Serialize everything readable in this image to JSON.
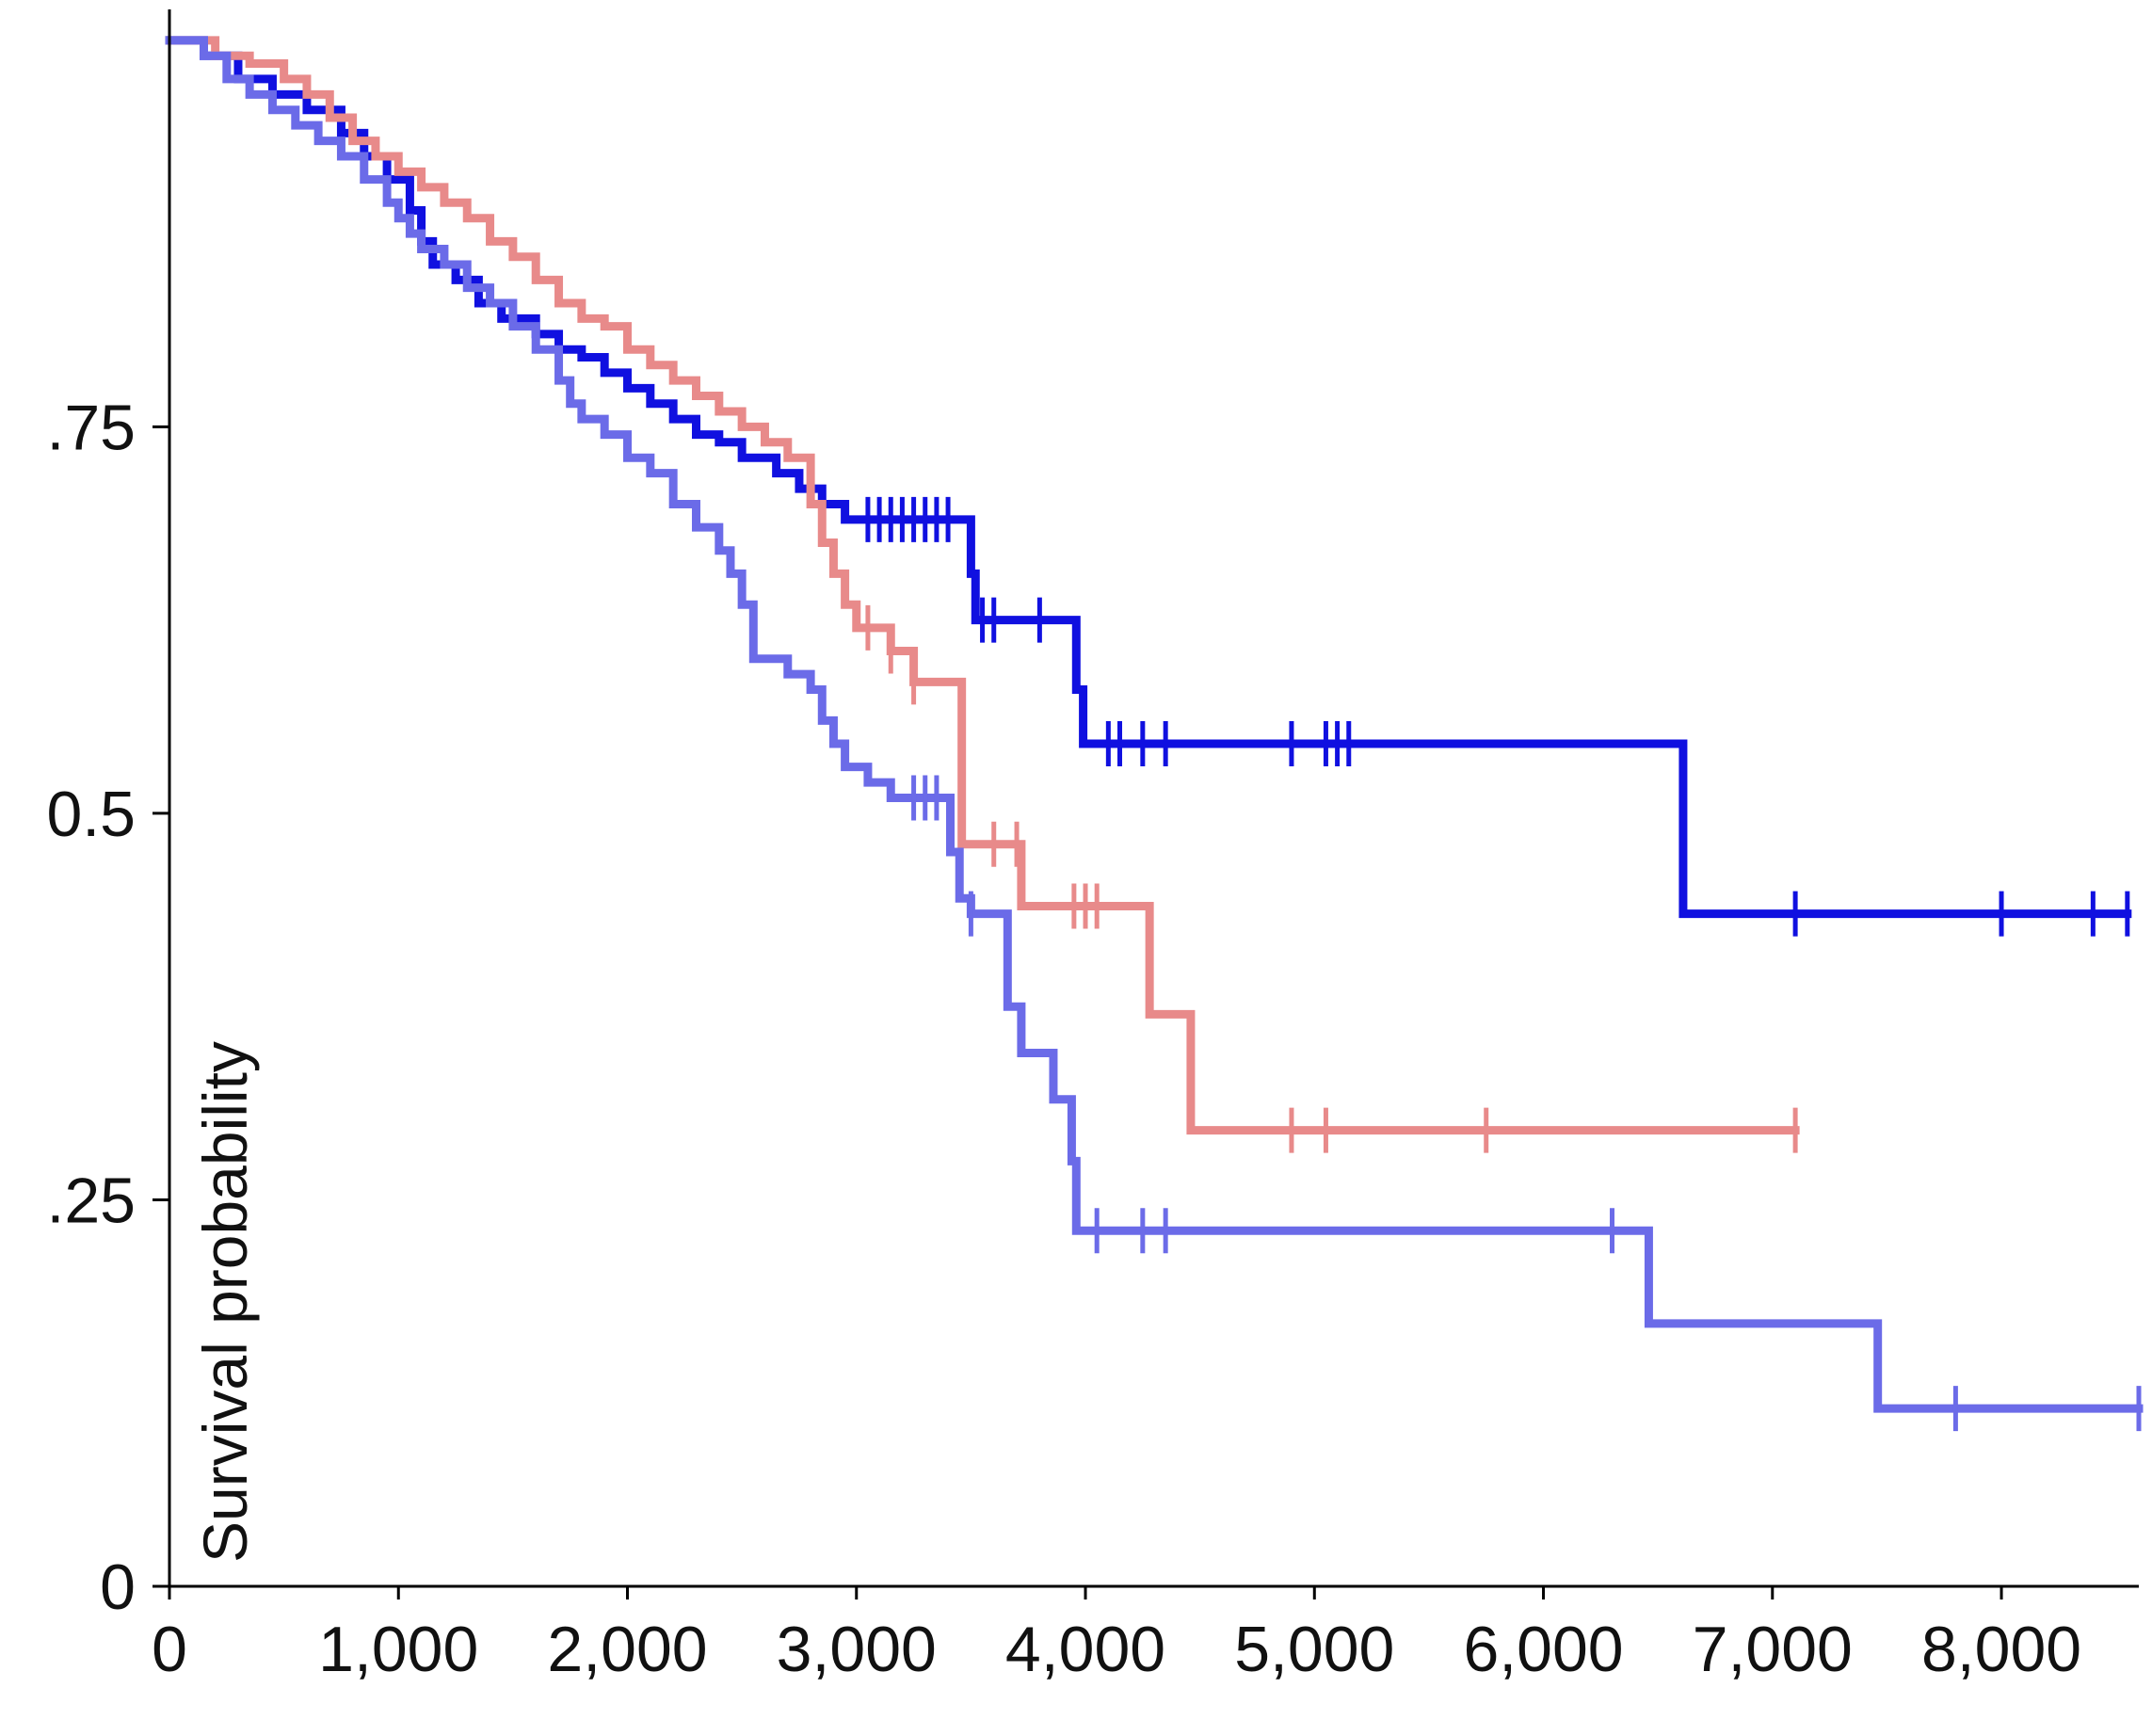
{
  "chart_data": {
    "type": "line",
    "ylabel": "Survival probability",
    "xlabel": "",
    "xlim": [
      0,
      8600
    ],
    "ylim": [
      0,
      1.02
    ],
    "x_ticks": [
      0,
      1000,
      2000,
      3000,
      4000,
      5000,
      6000,
      7000,
      8000
    ],
    "x_tick_labels": [
      "0",
      "1,000",
      "2,000",
      "3,000",
      "4,000",
      "5,000",
      "6,000",
      "7,000",
      "8,000"
    ],
    "y_ticks": [
      0,
      0.25,
      0.5,
      0.75
    ],
    "y_tick_labels": [
      "0",
      ".25",
      "0.5",
      ".75"
    ],
    "grid": false,
    "legend": "none",
    "series": [
      {
        "color": "#1010e0",
        "steps": [
          [
            0,
            1.0
          ],
          [
            150,
            0.99
          ],
          [
            300,
            0.975
          ],
          [
            450,
            0.965
          ],
          [
            600,
            0.955
          ],
          [
            750,
            0.94
          ],
          [
            850,
            0.925
          ],
          [
            950,
            0.91
          ],
          [
            1050,
            0.89
          ],
          [
            1100,
            0.87
          ],
          [
            1150,
            0.855
          ],
          [
            1250,
            0.845
          ],
          [
            1350,
            0.83
          ],
          [
            1450,
            0.82
          ],
          [
            1600,
            0.81
          ],
          [
            1700,
            0.8
          ],
          [
            1800,
            0.795
          ],
          [
            1900,
            0.785
          ],
          [
            2000,
            0.775
          ],
          [
            2100,
            0.765
          ],
          [
            2200,
            0.755
          ],
          [
            2300,
            0.745
          ],
          [
            2400,
            0.74
          ],
          [
            2500,
            0.73
          ],
          [
            2650,
            0.72
          ],
          [
            2750,
            0.71
          ],
          [
            2850,
            0.7
          ],
          [
            2950,
            0.69
          ],
          [
            3450,
            0.69
          ],
          [
            3500,
            0.655
          ],
          [
            3520,
            0.625
          ],
          [
            3950,
            0.625
          ],
          [
            3960,
            0.58
          ],
          [
            3990,
            0.545
          ],
          [
            6600,
            0.545
          ],
          [
            6610,
            0.435
          ],
          [
            8550,
            0.435
          ]
        ],
        "censored": [
          3050,
          3100,
          3150,
          3200,
          3250,
          3300,
          3350,
          3400,
          3550,
          3600,
          3800,
          4100,
          4150,
          4250,
          4350,
          4900,
          5050,
          5100,
          5150,
          7100,
          8000,
          8400,
          8550
        ]
      },
      {
        "color": "#e88a8a",
        "steps": [
          [
            0,
            1.0
          ],
          [
            200,
            0.99
          ],
          [
            350,
            0.985
          ],
          [
            500,
            0.975
          ],
          [
            600,
            0.965
          ],
          [
            700,
            0.95
          ],
          [
            800,
            0.935
          ],
          [
            900,
            0.925
          ],
          [
            1000,
            0.915
          ],
          [
            1100,
            0.905
          ],
          [
            1200,
            0.895
          ],
          [
            1300,
            0.885
          ],
          [
            1400,
            0.87
          ],
          [
            1500,
            0.86
          ],
          [
            1600,
            0.845
          ],
          [
            1700,
            0.83
          ],
          [
            1800,
            0.82
          ],
          [
            1900,
            0.815
          ],
          [
            2000,
            0.8
          ],
          [
            2100,
            0.79
          ],
          [
            2200,
            0.78
          ],
          [
            2300,
            0.77
          ],
          [
            2400,
            0.76
          ],
          [
            2500,
            0.75
          ],
          [
            2600,
            0.74
          ],
          [
            2700,
            0.73
          ],
          [
            2800,
            0.7
          ],
          [
            2850,
            0.675
          ],
          [
            2900,
            0.655
          ],
          [
            2950,
            0.635
          ],
          [
            3000,
            0.62
          ],
          [
            3150,
            0.605
          ],
          [
            3250,
            0.585
          ],
          [
            3450,
            0.585
          ],
          [
            3460,
            0.48
          ],
          [
            3700,
            0.48
          ],
          [
            3720,
            0.44
          ],
          [
            4250,
            0.44
          ],
          [
            4280,
            0.37
          ],
          [
            4450,
            0.37
          ],
          [
            4460,
            0.295
          ],
          [
            7100,
            0.295
          ]
        ],
        "censored": [
          3050,
          3150,
          3250,
          3600,
          3700,
          3950,
          4000,
          4050,
          4900,
          5050,
          5750,
          7100
        ]
      },
      {
        "color": "#6b6be8",
        "steps": [
          [
            0,
            1.0
          ],
          [
            150,
            0.99
          ],
          [
            250,
            0.975
          ],
          [
            350,
            0.965
          ],
          [
            450,
            0.955
          ],
          [
            550,
            0.945
          ],
          [
            650,
            0.935
          ],
          [
            750,
            0.925
          ],
          [
            850,
            0.91
          ],
          [
            950,
            0.895
          ],
          [
            1000,
            0.885
          ],
          [
            1050,
            0.875
          ],
          [
            1100,
            0.865
          ],
          [
            1200,
            0.855
          ],
          [
            1300,
            0.84
          ],
          [
            1400,
            0.83
          ],
          [
            1500,
            0.815
          ],
          [
            1600,
            0.8
          ],
          [
            1700,
            0.78
          ],
          [
            1750,
            0.765
          ],
          [
            1800,
            0.755
          ],
          [
            1900,
            0.745
          ],
          [
            2000,
            0.73
          ],
          [
            2100,
            0.72
          ],
          [
            2200,
            0.7
          ],
          [
            2300,
            0.685
          ],
          [
            2400,
            0.67
          ],
          [
            2450,
            0.655
          ],
          [
            2500,
            0.635
          ],
          [
            2550,
            0.6
          ],
          [
            2700,
            0.59
          ],
          [
            2800,
            0.58
          ],
          [
            2850,
            0.56
          ],
          [
            2900,
            0.545
          ],
          [
            2950,
            0.53
          ],
          [
            3050,
            0.52
          ],
          [
            3150,
            0.51
          ],
          [
            3400,
            0.51
          ],
          [
            3410,
            0.475
          ],
          [
            3450,
            0.445
          ],
          [
            3500,
            0.435
          ],
          [
            3650,
            0.435
          ],
          [
            3660,
            0.375
          ],
          [
            3720,
            0.345
          ],
          [
            3850,
            0.345
          ],
          [
            3860,
            0.315
          ],
          [
            3930,
            0.315
          ],
          [
            3940,
            0.275
          ],
          [
            3960,
            0.23
          ],
          [
            6450,
            0.23
          ],
          [
            6460,
            0.17
          ],
          [
            7450,
            0.17
          ],
          [
            7460,
            0.115
          ],
          [
            8600,
            0.115
          ]
        ],
        "censored": [
          3250,
          3300,
          3350,
          3500,
          4050,
          4250,
          4350,
          6300,
          7800,
          8600
        ]
      }
    ]
  }
}
